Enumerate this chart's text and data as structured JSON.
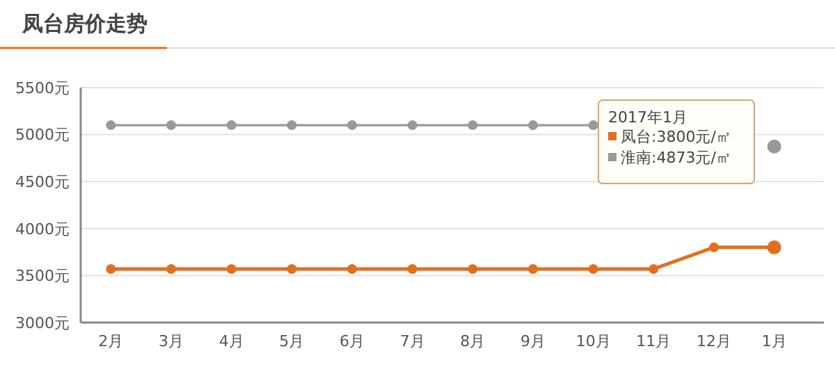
{
  "chart_data": {
    "type": "line",
    "title": "凤台房价走势",
    "categories": [
      "2月",
      "3月",
      "4月",
      "5月",
      "6月",
      "7月",
      "8月",
      "9月",
      "10月",
      "11月",
      "12月",
      "1月"
    ],
    "series": [
      {
        "name": "凤台",
        "color": "#e07020",
        "values": [
          3570,
          3570,
          3570,
          3570,
          3570,
          3570,
          3570,
          3570,
          3570,
          3570,
          3800,
          3800
        ]
      },
      {
        "name": "淮南",
        "color": "#999999",
        "values": [
          5100,
          5100,
          5100,
          5100,
          5100,
          5100,
          5100,
          5100,
          5100,
          null,
          null,
          4873
        ]
      }
    ],
    "ylim": [
      3000,
      5500
    ],
    "yticks": [
      {
        "value": 3000,
        "label": "3000元"
      },
      {
        "value": 3500,
        "label": "3500元"
      },
      {
        "value": 4000,
        "label": "4000元"
      },
      {
        "value": 4500,
        "label": "4500元"
      },
      {
        "value": 5000,
        "label": "5000元"
      },
      {
        "value": 5500,
        "label": "5500元"
      }
    ],
    "grid": "y",
    "marker": "circle",
    "legend": "top right",
    "annotations": [
      "2017年1月",
      ":3800元/㎡",
      ":4873元/㎡"
    ]
  }
}
